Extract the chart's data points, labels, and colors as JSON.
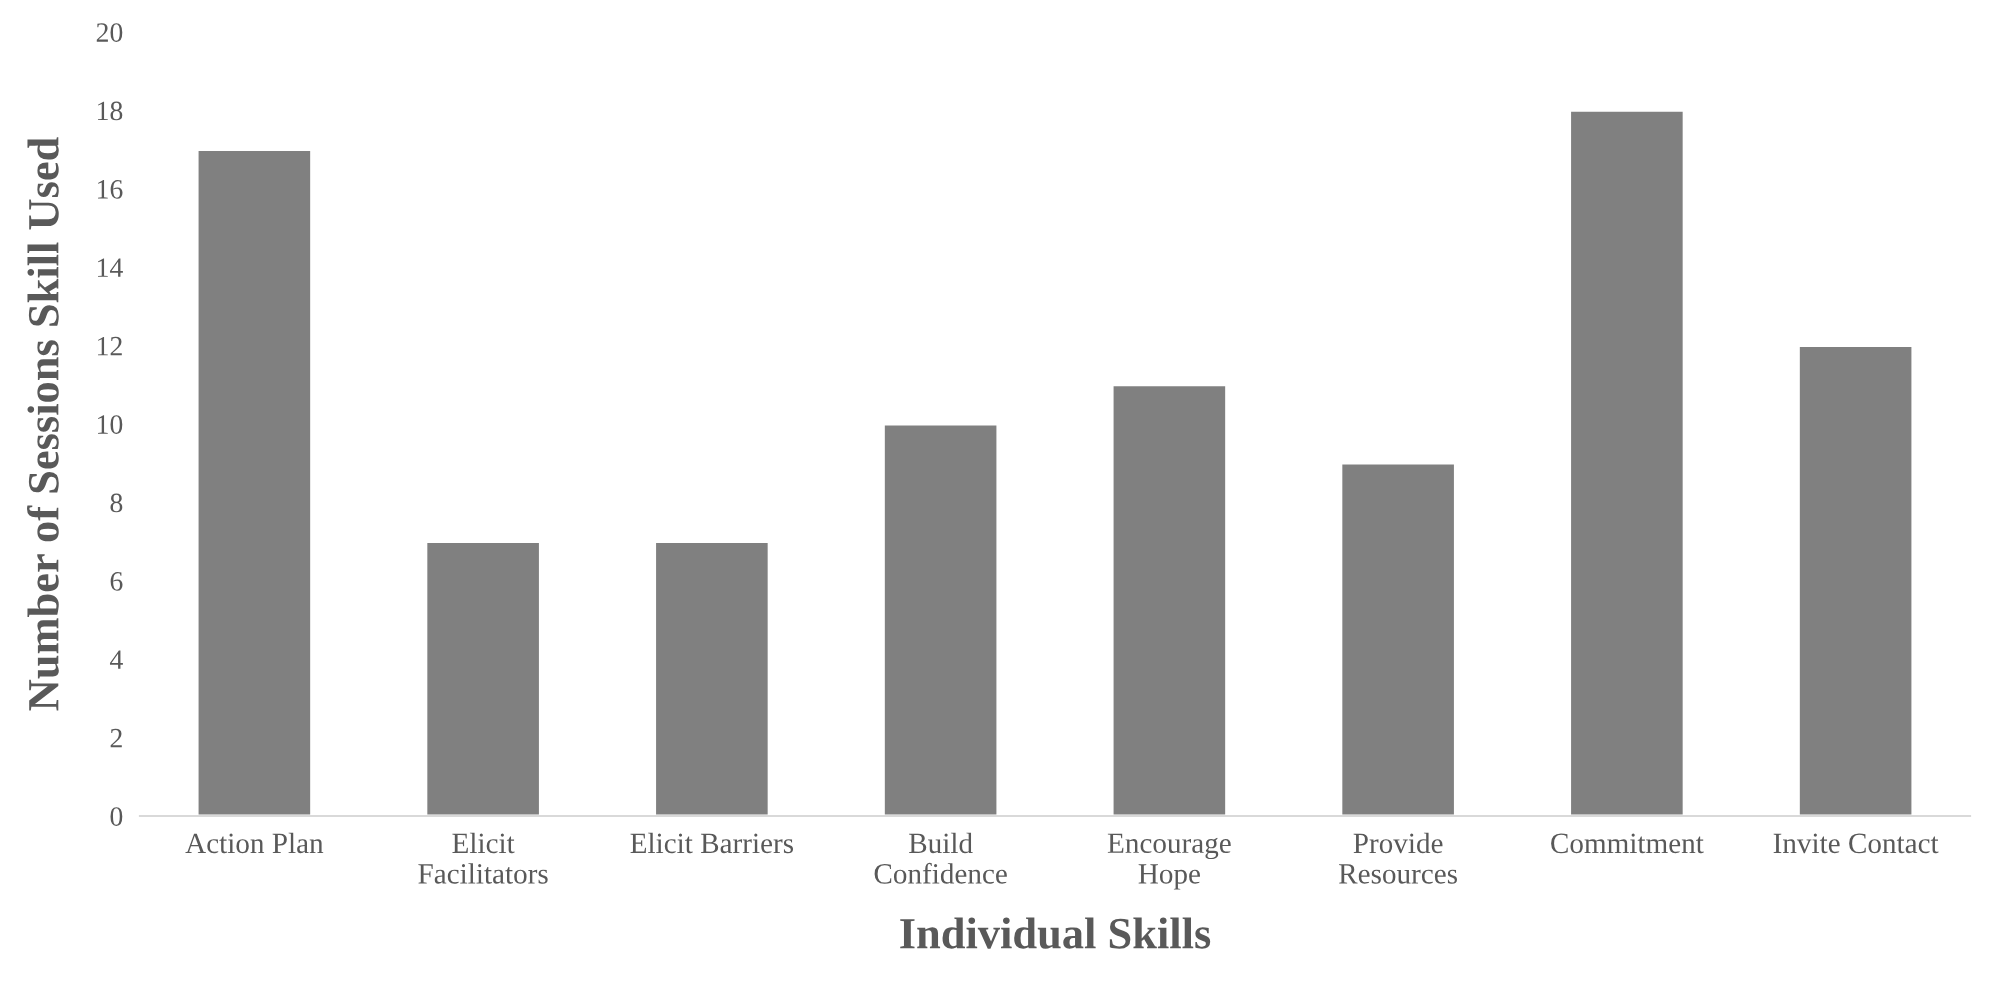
{
  "chart_data": {
    "type": "bar",
    "xlabel": "Individual Skills",
    "ylabel": "Number of Sessions Skill Used",
    "categories": [
      "Action Plan",
      "Elicit\nFacilitators",
      "Elicit Barriers",
      "Build\nConfidence",
      "Encourage\nHope",
      "Provide\nResources",
      "Commitment",
      "Invite Contact"
    ],
    "values": [
      17,
      7,
      7,
      10,
      11,
      9,
      18,
      12
    ],
    "color": "#808080",
    "ylim": [
      0,
      20
    ],
    "yticks": [
      0,
      2,
      4,
      6,
      8,
      10,
      12,
      14,
      16,
      18,
      20
    ],
    "grid": false,
    "legend": false
  }
}
